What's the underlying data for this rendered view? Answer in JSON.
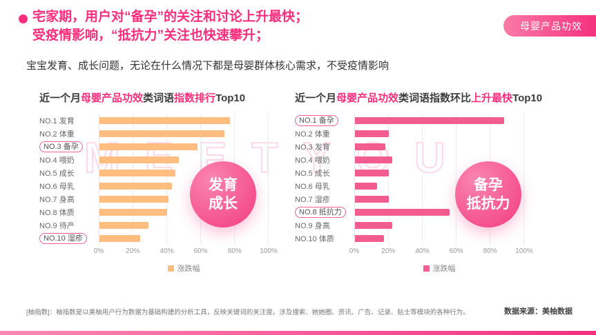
{
  "header": {
    "headline_line1": "宅家期，用户对“备孕”的关注和讨论上升最快；",
    "headline_line2": "受疫情影响，“抵抗力”关注也快速攀升；",
    "badge": "母婴产品功效",
    "subheadline": "宝宝发育、成长问题，无论在什么情况下都是母婴群体核心需求，不受疫情影响"
  },
  "watermark": "MEETYOU",
  "footer": {
    "footnote": "[柚指数]：柚指数是以美柚用户行为数据为基础构建的分析工具，反映关键词的关注度。涉及搜索、她她圈、资讯、广告、记录、贴士等模块的各种行为。",
    "data_source": "数据来源：美柚数据"
  },
  "colors": {
    "accent_pink": "#FA2E7C",
    "bar_orange": "#FFBE80",
    "bar_pink": "#F25C8E",
    "badge_gradient_start": "#FB7AA6",
    "badge_gradient_end": "#F5317F",
    "watermark_pink": "#F8BAD6",
    "bottom_bar_start": "#F889B4",
    "bottom_bar_end": "#F5317F"
  },
  "chart_data": [
    {
      "type": "bar",
      "orientation": "horizontal",
      "title": "近一个月母婴产品功效类词语指数排行Top10",
      "title_parts": [
        {
          "text": "近一个月",
          "highlight": false
        },
        {
          "text": "母婴产品功效",
          "highlight": true
        },
        {
          "text": "类词语",
          "highlight": false
        },
        {
          "text": "指数排行",
          "highlight": true
        },
        {
          "text": "Top10",
          "highlight": false
        }
      ],
      "categories": [
        "NO.1 发育",
        "NO.2 体重",
        "NO.3 备孕",
        "NO.4 喂奶",
        "NO.5 成长",
        "NO.6 母乳",
        "NO.7 身高",
        "NO.8 体质",
        "NO.9 待产",
        "NO.10 湿疹"
      ],
      "values": [
        77,
        74,
        58,
        47,
        45,
        43,
        41,
        40,
        29,
        24
      ],
      "value_unit": "%",
      "xlim": [
        0,
        100
      ],
      "x_ticks": [
        "0%",
        "20%",
        "40%",
        "60%",
        "80%",
        "100%"
      ],
      "grid": true,
      "legend": "涨跌幅",
      "legend_position": "bottom",
      "bar_color": "#FFBE80",
      "highlight_color": "#F0618F",
      "highlighted_categories": [
        "NO.3 备孕",
        "NO.10 湿疹"
      ],
      "overlay_circle": {
        "lines": [
          "发育",
          "成长"
        ]
      }
    },
    {
      "type": "bar",
      "orientation": "horizontal",
      "title": "近一个月母婴产品功效类词语指数环比上升最快Top10",
      "title_parts": [
        {
          "text": "近一个月",
          "highlight": false
        },
        {
          "text": "母婴产品功效",
          "highlight": true
        },
        {
          "text": "类词语指数环比",
          "highlight": false
        },
        {
          "text": "上升最快",
          "highlight": true
        },
        {
          "text": "Top10",
          "highlight": false
        }
      ],
      "categories": [
        "NO.1 备孕",
        "NO.2 体重",
        "NO.3 发育",
        "NO.4 喂奶",
        "NO.5 成长",
        "NO.6 母乳",
        "NO.7 湿疹",
        "NO.8 抵抗力",
        "NO.9 身高",
        "NO.10 体质"
      ],
      "values": [
        88,
        20,
        18,
        22,
        20,
        13,
        20,
        56,
        22,
        17
      ],
      "value_unit": "%",
      "xlim": [
        0,
        100
      ],
      "x_ticks": [
        "0%",
        "20%",
        "40%",
        "60%",
        "80%",
        "100%"
      ],
      "grid": true,
      "legend": "涨跌幅",
      "legend_position": "bottom",
      "bar_color": "#F25C8E",
      "highlight_color": "#F0618F",
      "highlighted_categories": [
        "NO.1 备孕",
        "NO.8 抵抗力"
      ],
      "overlay_circle": {
        "lines": [
          "备孕",
          "抵抗力"
        ]
      }
    }
  ]
}
